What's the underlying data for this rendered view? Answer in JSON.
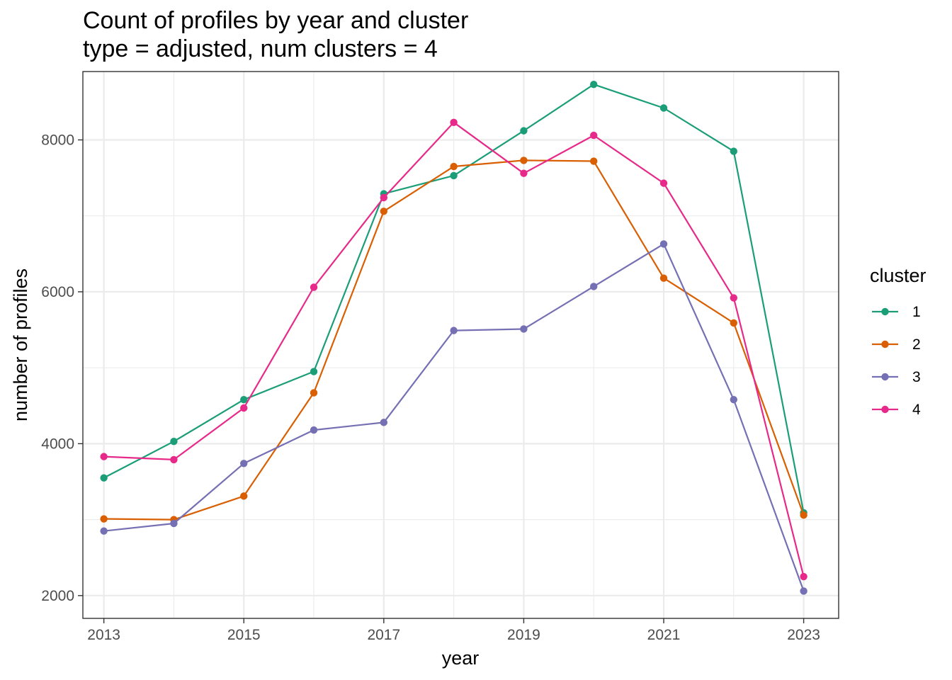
{
  "chart_data": {
    "type": "line",
    "title": "Count of profiles by year and cluster",
    "subtitle": "type = adjusted, num clusters = 4",
    "xlabel": "year",
    "ylabel": "number of profiles",
    "x": [
      2013,
      2014,
      2015,
      2016,
      2017,
      2018,
      2019,
      2020,
      2021,
      2022,
      2023
    ],
    "xlim": [
      2012.7,
      2023.5
    ],
    "ylim": [
      1700,
      8900
    ],
    "x_ticks": [
      2013,
      2015,
      2017,
      2019,
      2021,
      2023
    ],
    "y_ticks": [
      2000,
      4000,
      6000,
      8000
    ],
    "grid": true,
    "legend": {
      "title": "cluster",
      "position": "right"
    },
    "series": [
      {
        "name": "1",
        "color": "#1b9e77",
        "values": [
          3550,
          4030,
          4580,
          4950,
          7290,
          7530,
          8120,
          8730,
          8420,
          7850,
          3090
        ]
      },
      {
        "name": "2",
        "color": "#d95f02",
        "values": [
          3010,
          3000,
          3310,
          4670,
          7060,
          7650,
          7730,
          7720,
          6180,
          5590,
          3060
        ]
      },
      {
        "name": "3",
        "color": "#7570b3",
        "values": [
          2850,
          2950,
          3740,
          4180,
          4280,
          5490,
          5510,
          6070,
          6630,
          4580,
          2060
        ]
      },
      {
        "name": "4",
        "color": "#e7298a",
        "values": [
          3830,
          3790,
          4470,
          6060,
          7240,
          8230,
          7560,
          8060,
          7430,
          5920,
          2250
        ]
      }
    ]
  }
}
